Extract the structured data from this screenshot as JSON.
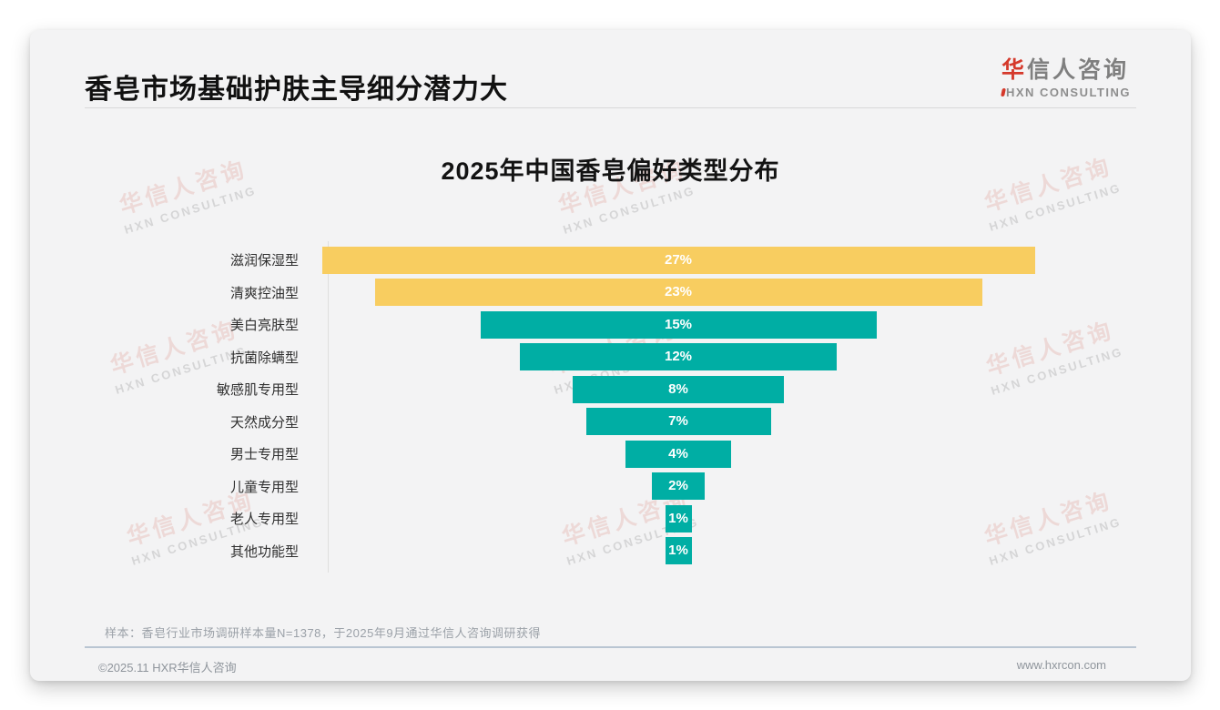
{
  "header": {
    "title": "香皂市场基础护肤主导细分潜力大",
    "logo": {
      "accent": "华",
      "rest": "信人咨询",
      "english": "HXN CONSULTING"
    }
  },
  "chart_data": {
    "type": "bar",
    "variant": "centered-funnel",
    "orientation": "horizontal",
    "title": "2025年中国香皂偏好类型分布",
    "categories": [
      "滋润保湿型",
      "清爽控油型",
      "美白亮肤型",
      "抗菌除螨型",
      "敏感肌专用型",
      "天然成分型",
      "男士专用型",
      "儿童专用型",
      "老人专用型",
      "其他功能型"
    ],
    "values": [
      27,
      23,
      15,
      12,
      8,
      7,
      4,
      2,
      1,
      1
    ],
    "unit": "%",
    "value_label_format": "inside-center-white",
    "xlim": [
      0,
      27
    ],
    "grid": false,
    "legend": "none",
    "bar_colors": [
      "#f8cd60",
      "#f8cd60",
      "#00aea4",
      "#00aea4",
      "#00aea4",
      "#00aea4",
      "#00aea4",
      "#00aea4",
      "#00aea4",
      "#00aea4"
    ],
    "highlight_color": "#f8cd60",
    "default_color": "#00aea4"
  },
  "annotations": {
    "sample_note": "样本：香皂行业市场调研样本量N=1378，于2025年9月通过华信人咨询调研获得"
  },
  "footer": {
    "copyright": "©2025.11 HXR华信人咨询",
    "website": "www.hxrcon.com"
  },
  "watermark": {
    "line1": "华信人咨询",
    "line2": "HXN CONSULTING"
  }
}
